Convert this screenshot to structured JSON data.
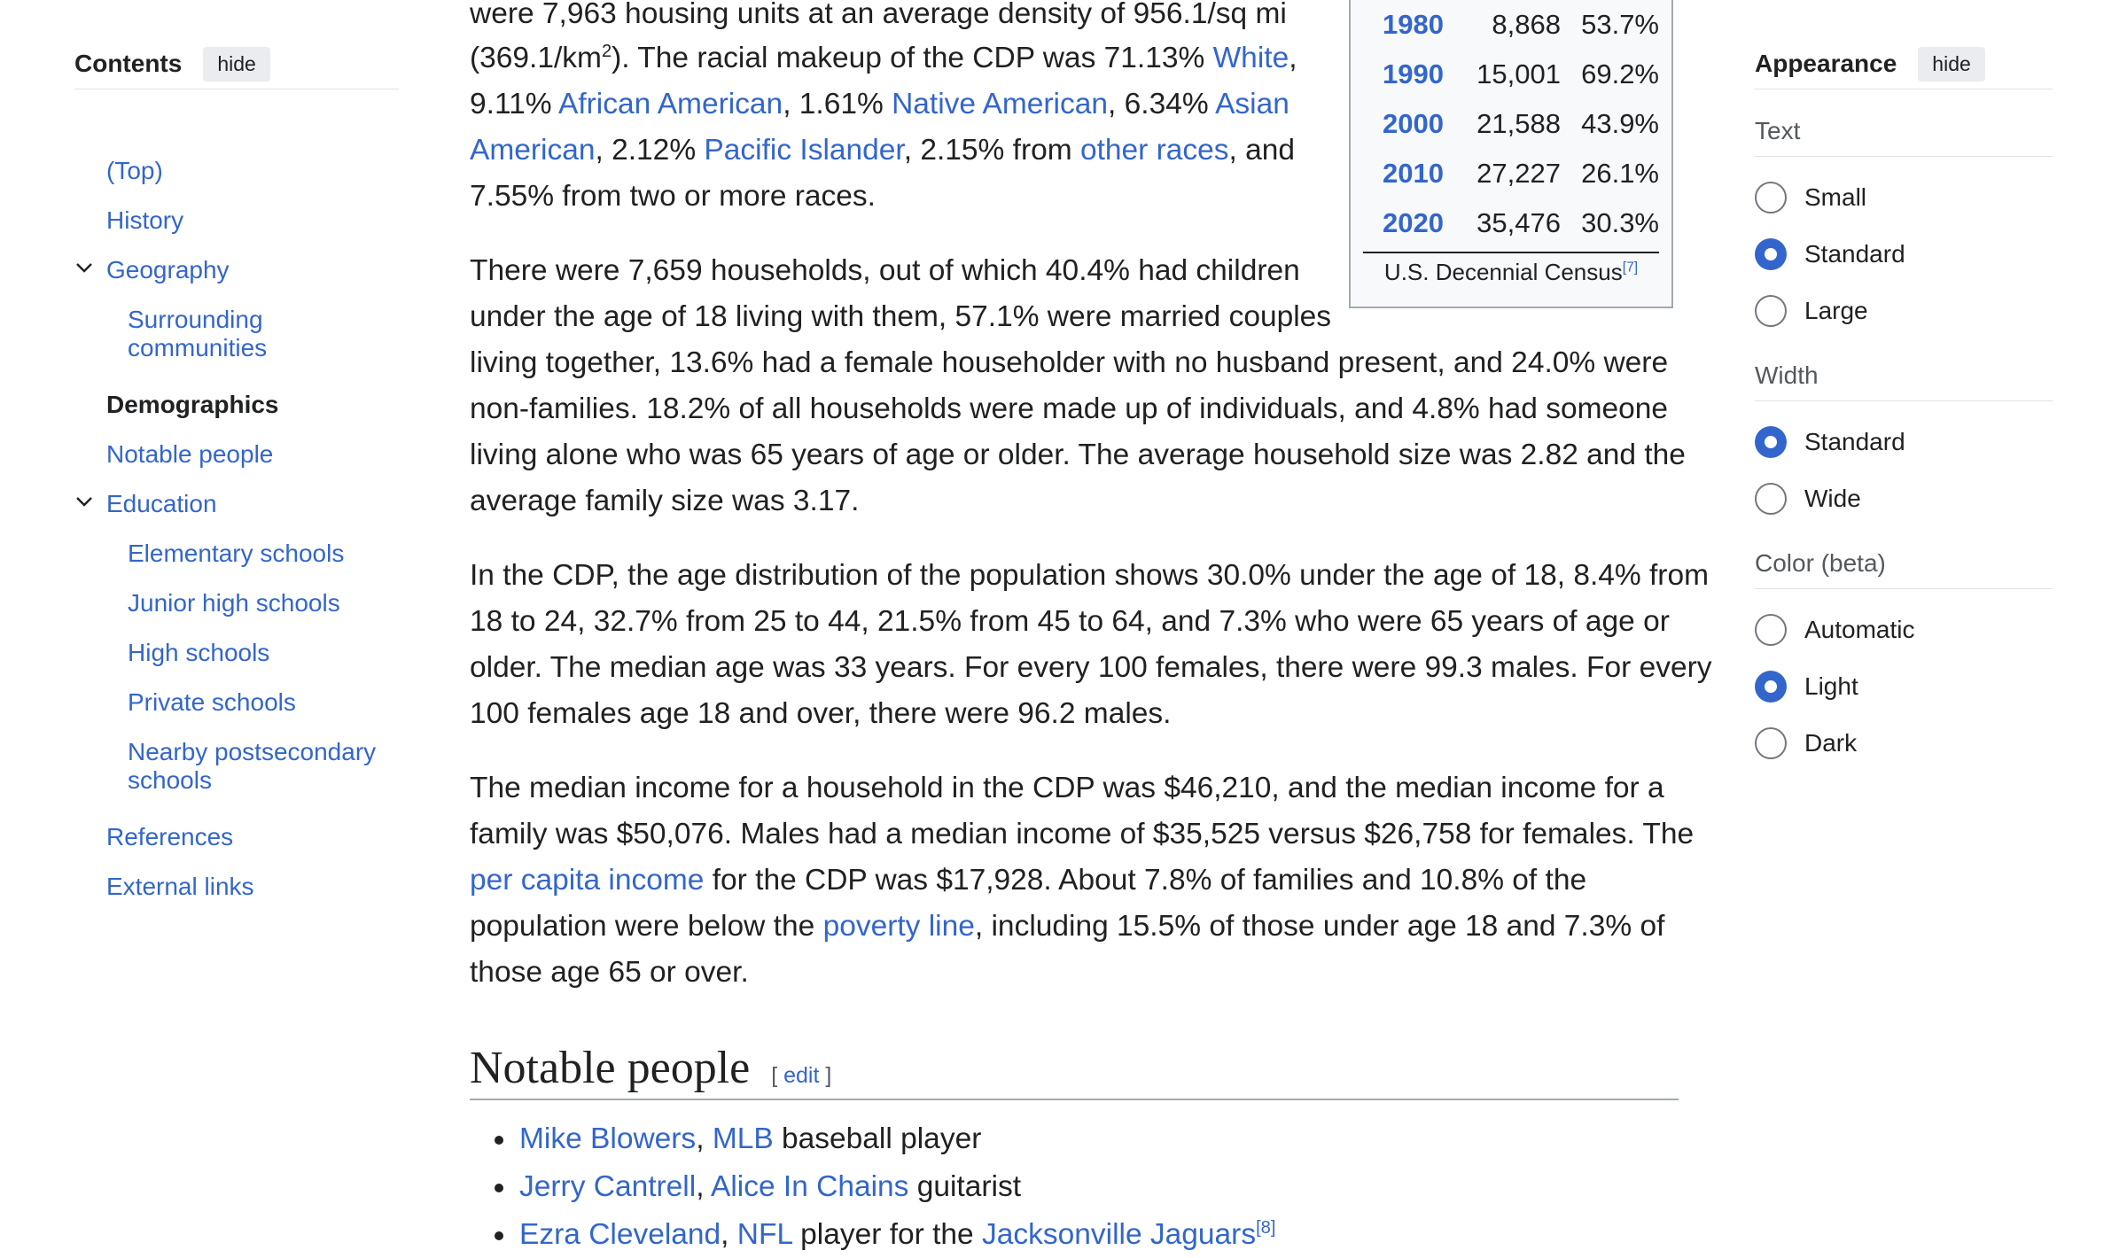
{
  "toc": {
    "title": "Contents",
    "hide": "hide",
    "items": [
      {
        "label": "(Top)"
      },
      {
        "label": "History"
      },
      {
        "label": "Geography"
      },
      {
        "label": "Surrounding communities"
      },
      {
        "label": "Demographics"
      },
      {
        "label": "Notable people"
      },
      {
        "label": "Education"
      },
      {
        "label": "Elementary schools"
      },
      {
        "label": "Junior high schools"
      },
      {
        "label": "High schools"
      },
      {
        "label": "Private schools"
      },
      {
        "label": "Nearby postsecondary schools"
      },
      {
        "label": "References"
      },
      {
        "label": "External links"
      }
    ]
  },
  "census": {
    "rows": [
      {
        "year": "1980",
        "pop": "8,868",
        "pct": "53.7%"
      },
      {
        "year": "1990",
        "pop": "15,001",
        "pct": "69.2%"
      },
      {
        "year": "2000",
        "pop": "21,588",
        "pct": "43.9%"
      },
      {
        "year": "2010",
        "pop": "27,227",
        "pct": "26.1%"
      },
      {
        "year": "2020",
        "pop": "35,476",
        "pct": "30.3%"
      }
    ],
    "footer": "U.S. Decennial Census",
    "footer_ref": "[7]"
  },
  "content": {
    "p1": {
      "l1": "were 7,963 housing units at an average density of 956.1/sq mi",
      "l2a": "(369.1/km",
      "l2sup": "2",
      "l2b": "). The racial makeup of the CDP was 71.13% ",
      "white": "White",
      "l3a": "9.11% ",
      "aa": "African American",
      "l3b": ", 1.61% ",
      "na": "Native American",
      "l3c": ", 6.34% ",
      "asian1": "Asian",
      "asian2": "American",
      "l4a": ", 2.12% ",
      "pi": "Pacific Islander",
      "l4b": ", 2.15% from ",
      "other": "other races",
      "l4c": ", and",
      "l5": "7.55% from two or more races."
    },
    "p2": [
      "There were 7,659 households, out of which 40.4% had children",
      "under the age of 18 living with them, 57.1% were married couples",
      "living together, 13.6% had a female householder with no husband present, and 24.0% were",
      "non-families. 18.2% of all households were made up of individuals, and 4.8% had someone",
      "living alone who was 65 years of age or older. The average household size was 2.82 and the",
      "average family size was 3.17."
    ],
    "p3": [
      "In the CDP, the age distribution of the population shows 30.0% under the age of 18, 8.4% from",
      "18 to 24, 32.7% from 25 to 44, 21.5% from 45 to 64, and 7.3% who were 65 years of age or",
      "older. The median age was 33 years. For every 100 females, there were 99.3 males. For every",
      "100 females age 18 and over, there were 96.2 males."
    ],
    "p4": {
      "l1": "The median income for a household in the CDP was $46,210, and the median income for a",
      "l2": "family was $50,076. Males had a median income of $35,525 versus $26,758 for females. The",
      "pci": "per capita income",
      "l3": " for the CDP was $17,928. About 7.8% of families and 10.8% of the",
      "l4a": "population were below the ",
      "poverty": "poverty line",
      "l4b": ", including 15.5% of those under age 18 and 7.3% of",
      "l5": "those age 65 or over."
    },
    "notable": {
      "heading": "Notable people",
      "edit_open": "[ ",
      "edit": "edit",
      "edit_close": " ]",
      "people": [
        {
          "name": "Mike Blowers",
          "sep": ", ",
          "link2": "MLB",
          "rest": " baseball player"
        },
        {
          "name": "Jerry Cantrell",
          "sep": ", ",
          "link2": "Alice In Chains",
          "rest": " guitarist"
        },
        {
          "name": "Ezra Cleveland",
          "sep": ", ",
          "link2": "NFL",
          "rest": " player for the ",
          "link3": "Jacksonville Jaguars",
          "ref": "[8]"
        }
      ]
    }
  },
  "appearance": {
    "title": "Appearance",
    "hide": "hide",
    "text_label": "Text",
    "text_options": [
      "Small",
      "Standard",
      "Large"
    ],
    "width_label": "Width",
    "width_options": [
      "Standard",
      "Wide"
    ],
    "color_label": "Color (beta)",
    "color_options": [
      "Automatic",
      "Light",
      "Dark"
    ]
  },
  "colors": {
    "link": "#3366cc",
    "radio_selected": "#3366cc",
    "text": "#202122"
  }
}
